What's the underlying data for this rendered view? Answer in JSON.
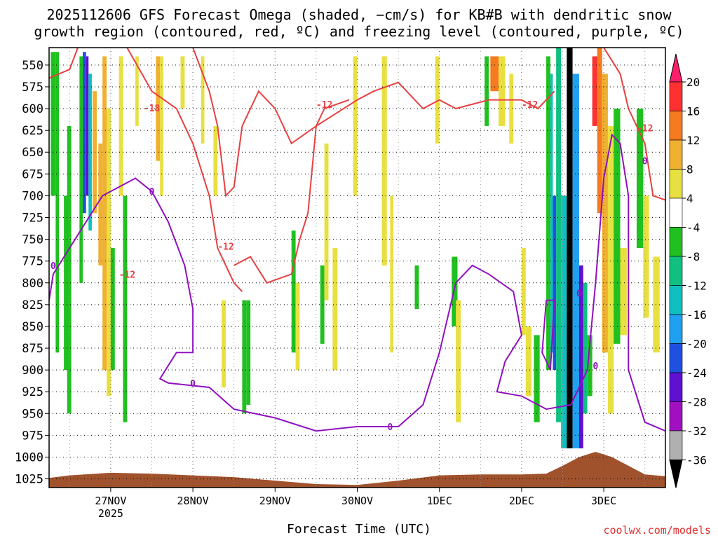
{
  "title_line1": "2025112606 GFS Forecast Omega (shaded, −cm/s) for KB#B with dendritic snow",
  "title_line2": "growth region (contoured, red, ºC) and freezing level (contoured, purple, ºC)",
  "credit": "coolwx.com/models",
  "chart_data": {
    "type": "heatmap",
    "xlabel": "Forecast Time (UTC)",
    "ylabel": "",
    "x_ticks": [
      "27NOV",
      "28NOV",
      "29NOV",
      "30NOV",
      "1DEC",
      "2DEC",
      "3DEC"
    ],
    "x_tick_sublabel": "2025",
    "x_range_days": [
      0.25,
      7.75
    ],
    "y_ticks": [
      550,
      575,
      600,
      625,
      650,
      675,
      700,
      725,
      750,
      775,
      800,
      825,
      850,
      875,
      900,
      925,
      950,
      975,
      1000,
      1025
    ],
    "y_range": [
      530,
      1035
    ],
    "y_reversed": true,
    "grid": "dotted",
    "colorbar": {
      "labels": [
        20,
        16,
        12,
        8,
        4,
        -4,
        -8,
        -12,
        -16,
        -20,
        -24,
        -28,
        -32,
        -36
      ],
      "colors": [
        "#ff1e6a",
        "#ff3030",
        "#f57a20",
        "#f0b030",
        "#e8e040",
        "#ffffff",
        "#20c020",
        "#10c080",
        "#10c0c0",
        "#20a0f0",
        "#2050e0",
        "#6010d0",
        "#a010c0",
        "#b0b0b0",
        "#000000"
      ]
    },
    "contour_labels": [
      {
        "text": "-18",
        "color": "#e84040",
        "x": 1.5,
        "y": 599
      },
      {
        "text": "-12",
        "color": "#e84040",
        "x": 3.6,
        "y": 595
      },
      {
        "text": "-12",
        "color": "#e84040",
        "x": 6.1,
        "y": 595
      },
      {
        "text": "-12",
        "color": "#e84040",
        "x": 2.4,
        "y": 758
      },
      {
        "text": "-12",
        "color": "#e84040",
        "x": 1.2,
        "y": 790
      },
      {
        "text": "-12",
        "color": "#e84040",
        "x": 7.5,
        "y": 622
      },
      {
        "text": "0",
        "color": "#9010c0",
        "x": 0.3,
        "y": 780
      },
      {
        "text": "0",
        "color": "#9010c0",
        "x": 1.5,
        "y": 695
      },
      {
        "text": "0",
        "color": "#9010c0",
        "x": 2.0,
        "y": 915
      },
      {
        "text": "0",
        "color": "#9010c0",
        "x": 4.4,
        "y": 965
      },
      {
        "text": "0",
        "color": "#9010c0",
        "x": 6.7,
        "y": 812
      },
      {
        "text": "0",
        "color": "#9010c0",
        "x": 6.9,
        "y": 895
      },
      {
        "text": "0",
        "color": "#9010c0",
        "x": 7.5,
        "y": 660
      }
    ]
  }
}
